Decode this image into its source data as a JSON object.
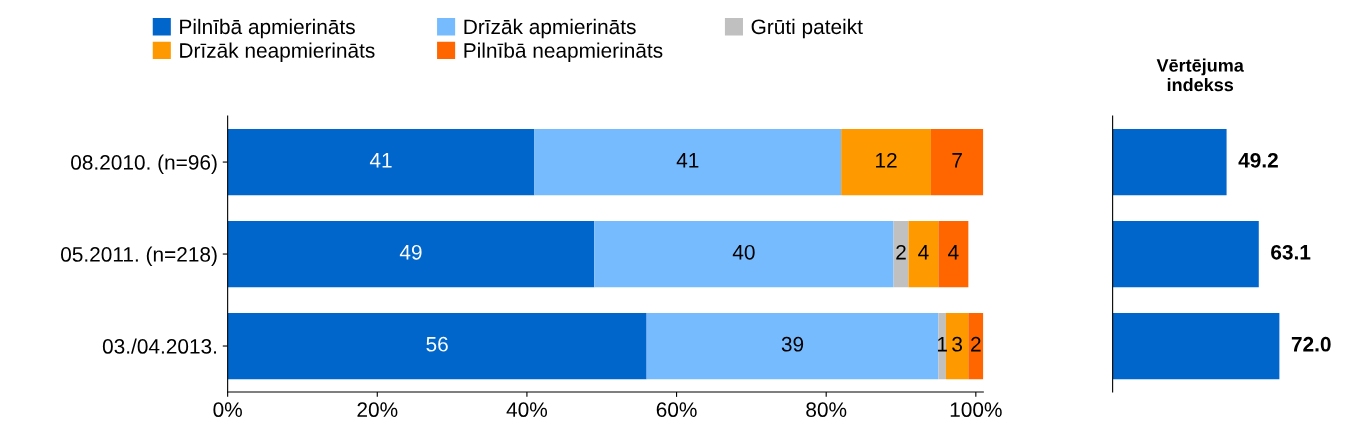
{
  "chart_data": [
    {
      "type": "bar",
      "orientation": "horizontal",
      "stacked": true,
      "categories": [
        "08.2010. (n=96)",
        "05.2011. (n=218)",
        "03./04.2013."
      ],
      "series": [
        {
          "name": "Pilnībā apmierināts",
          "color": "#0066cc",
          "values": [
            41,
            49,
            56
          ]
        },
        {
          "name": "Drīzāk apmierināts",
          "color": "#77bbff",
          "values": [
            41,
            40,
            39
          ]
        },
        {
          "name": "Grūti pateikt",
          "color": "#c0c0c0",
          "values": [
            null,
            2,
            1
          ]
        },
        {
          "name": "Drīzāk neapmierināts",
          "color": "#ff9900",
          "values": [
            12,
            4,
            3
          ]
        },
        {
          "name": "Pilnībā neapmierināts",
          "color": "#ff6600",
          "values": [
            7,
            4,
            2
          ]
        }
      ],
      "xlim": [
        0,
        101
      ],
      "xticks": [
        {
          "value": 0,
          "label": "0%"
        },
        {
          "value": 20,
          "label": "20%"
        },
        {
          "value": 40,
          "label": "40%"
        },
        {
          "value": 60,
          "label": "60%"
        },
        {
          "value": 80,
          "label": "80%"
        },
        {
          "value": 100,
          "label": "100%"
        }
      ],
      "data_labels": true,
      "legend": "top",
      "grid": false
    },
    {
      "type": "bar",
      "orientation": "horizontal",
      "title": "Vērtējuma\nindekss",
      "categories": [
        null,
        null,
        null
      ],
      "values": [
        49.2,
        63.1,
        72.0
      ],
      "value_labels": [
        "49.2",
        "63.1",
        "72.0"
      ],
      "color": "#0066cc",
      "tick_labels": false,
      "grid": false
    }
  ]
}
